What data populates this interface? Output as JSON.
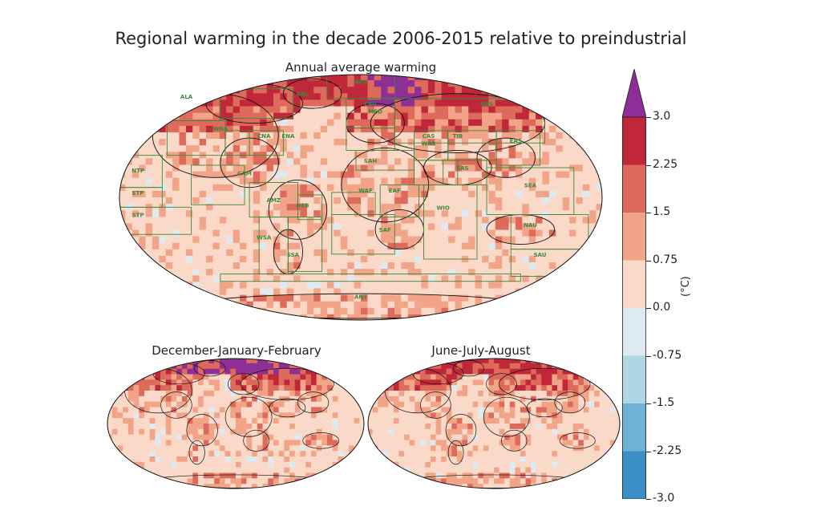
{
  "title": "Regional warming in the decade 2006-2015 relative to preindustrial",
  "panels": {
    "annual": {
      "title": "Annual average warming"
    },
    "djf": {
      "title": "December-January-February"
    },
    "jja": {
      "title": "June-July-August"
    }
  },
  "regions": [
    "ALA",
    "GRL",
    "NEU",
    "CEU",
    "MED",
    "NAS",
    "WNA",
    "CNA",
    "ENA",
    "CAS",
    "TIB",
    "EAS",
    "WAS",
    "SAH",
    "SAS",
    "CAM",
    "NTP",
    "ETP",
    "STP",
    "AMZ",
    "NEB",
    "WAF",
    "EAF",
    "WIO",
    "SEA",
    "NAU",
    "SAF",
    "WSA",
    "SSA",
    "SAU",
    "ANT"
  ],
  "colorbar": {
    "label": "(°C)",
    "ticks": [
      "3.0",
      "2.25",
      "1.5",
      "0.75",
      "0.0",
      "-0.75",
      "-1.5",
      "-2.25",
      "-3.0"
    ],
    "colors": [
      "#c0283a",
      "#dd6a5a",
      "#f2a488",
      "#fbd9c8",
      "#deeaf2",
      "#b0d6e6",
      "#6fb2d6",
      "#3c8fc6",
      "#2a71b4"
    ],
    "extend_color": "#8e2f97"
  },
  "colors": {
    "warm_dark": "#c0283a",
    "warm_mid": "#dd6a5a",
    "warm_light": "#f2a488",
    "warm_pale": "#fbd9c8",
    "cool_pale": "#deeaf2",
    "extreme": "#8e2f97",
    "region_line": "#3a8a3a",
    "coast": "#111111"
  }
}
